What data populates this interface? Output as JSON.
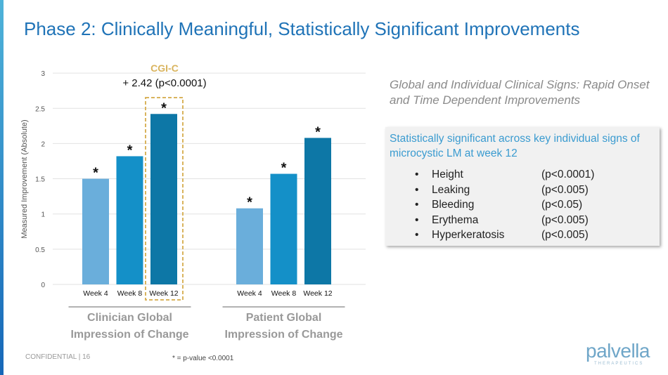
{
  "title": "Phase 2: Clinically Meaningful, Statistically Significant Improvements",
  "subtitle": "Global and Individual Clinical Signs: Rapid Onset and Time Dependent Improvements",
  "box": {
    "heading": "Statistically significant across key individual signs of microcystic LM at week 12",
    "items": [
      {
        "name": "Height",
        "p": "(p<0.0001)"
      },
      {
        "name": "Leaking",
        "p": "(p<0.005)"
      },
      {
        "name": "Bleeding",
        "p": "(p<0.05)"
      },
      {
        "name": "Erythema",
        "p": "(p<0.005)"
      },
      {
        "name": "Hyperkeratosis",
        "p": "(p<0.005)"
      }
    ]
  },
  "footer": {
    "confidential": "CONFIDENTIAL | 16",
    "footnote": "* = p-value <0.0001",
    "logo": "palvella",
    "logo_sub": "THERAPEUTICS"
  },
  "chart_data": {
    "type": "bar",
    "ylabel": "Measured Improvement (Absolute)",
    "ylim": [
      0,
      3
    ],
    "yticks": [
      "0",
      "0.5",
      "1",
      "1.5",
      "2",
      "2.5",
      "3"
    ],
    "grid": true,
    "groups": [
      {
        "name": "Clinician Global Impression of Change",
        "categories": [
          "Week 4",
          "Week 8",
          "Week 12"
        ],
        "values": [
          1.5,
          1.82,
          2.42
        ],
        "markers": [
          "*",
          "*",
          "*"
        ]
      },
      {
        "name": "Patient Global Impression of Change",
        "categories": [
          "Week 4",
          "Week 8",
          "Week 12"
        ],
        "values": [
          1.08,
          1.57,
          2.08
        ],
        "markers": [
          "*",
          "*",
          "*"
        ]
      }
    ],
    "colors": [
      "#6aaedb",
      "#1490c8",
      "#0d77a6"
    ],
    "annotation": {
      "label": "CGI-C",
      "text": "+ 2.42 (p<0.0001)",
      "color": "#d9b45e"
    }
  }
}
